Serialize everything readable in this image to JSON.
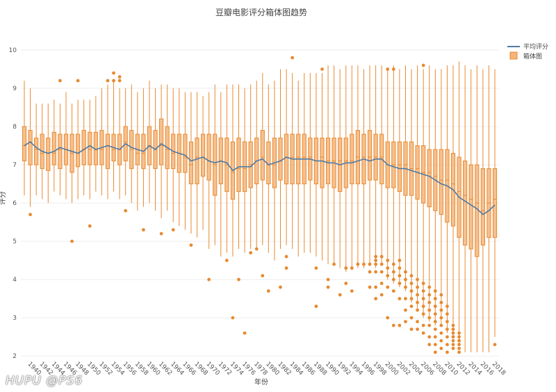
{
  "watermark": "HUPU @PS6",
  "chart_data": {
    "type": "box",
    "title": "豆瓣电影评分箱体图趋势",
    "xlabel": "年份",
    "ylabel": "评分",
    "ylim": [
      1.95,
      10.4
    ],
    "yticks": [
      2,
      3,
      4,
      5,
      6,
      7,
      8,
      9,
      10
    ],
    "xticks": [
      1940,
      1942,
      1944,
      1946,
      1948,
      1950,
      1952,
      1954,
      1956,
      1958,
      1960,
      1962,
      1964,
      1966,
      1968,
      1970,
      1972,
      1974,
      1976,
      1978,
      1980,
      1982,
      1984,
      1986,
      1988,
      1990,
      1992,
      1994,
      1996,
      1998,
      2000,
      2002,
      2004,
      2006,
      2008,
      2010,
      2012,
      2014,
      2016,
      2018
    ],
    "legend": {
      "position": "top-right",
      "entries": [
        "平均评分",
        "箱体图"
      ]
    },
    "colors": {
      "box": "#f5b57a",
      "box_edge": "#e8892f",
      "outlier": "#e8892f",
      "mean_line": "#4d7aa3",
      "grid": "#eeeeee"
    },
    "years": [
      1939,
      1940,
      1941,
      1942,
      1943,
      1944,
      1945,
      1946,
      1947,
      1948,
      1949,
      1950,
      1951,
      1952,
      1953,
      1954,
      1955,
      1956,
      1957,
      1958,
      1959,
      1960,
      1961,
      1962,
      1963,
      1964,
      1965,
      1966,
      1967,
      1968,
      1969,
      1970,
      1971,
      1972,
      1973,
      1974,
      1975,
      1976,
      1977,
      1978,
      1979,
      1980,
      1981,
      1982,
      1983,
      1984,
      1985,
      1986,
      1987,
      1988,
      1989,
      1990,
      1991,
      1992,
      1993,
      1994,
      1995,
      1996,
      1997,
      1998,
      1999,
      2000,
      2001,
      2002,
      2003,
      2004,
      2005,
      2006,
      2007,
      2008,
      2009,
      2010,
      2011,
      2012,
      2013,
      2014,
      2015,
      2016,
      2017,
      2018
    ],
    "mean": [
      7.5,
      7.6,
      7.45,
      7.35,
      7.3,
      7.35,
      7.45,
      7.4,
      7.35,
      7.3,
      7.4,
      7.5,
      7.4,
      7.45,
      7.5,
      7.45,
      7.4,
      7.55,
      7.45,
      7.4,
      7.35,
      7.5,
      7.4,
      7.55,
      7.45,
      7.35,
      7.3,
      7.25,
      7.1,
      7.15,
      7.2,
      7.1,
      7.05,
      7.1,
      7.05,
      6.85,
      6.95,
      6.95,
      6.95,
      7.1,
      7.15,
      7.0,
      7.05,
      7.1,
      7.2,
      7.15,
      7.15,
      7.15,
      7.15,
      7.1,
      7.1,
      7.05,
      7.05,
      7.0,
      7.05,
      7.05,
      7.1,
      7.15,
      7.1,
      7.15,
      7.15,
      7.0,
      6.95,
      6.9,
      6.9,
      6.85,
      6.8,
      6.75,
      6.7,
      6.6,
      6.5,
      6.45,
      6.35,
      6.15,
      6.05,
      5.95,
      5.85,
      5.7,
      5.8,
      5.95
    ],
    "q1": [
      7.1,
      7.0,
      7.0,
      6.9,
      6.85,
      7.0,
      6.9,
      7.0,
      6.8,
      6.95,
      7.0,
      7.0,
      7.0,
      7.0,
      6.9,
      7.1,
      7.0,
      7.1,
      6.9,
      7.0,
      6.9,
      7.0,
      6.9,
      7.0,
      6.9,
      6.9,
      6.8,
      6.8,
      6.5,
      6.5,
      6.7,
      6.6,
      6.2,
      6.5,
      6.3,
      6.1,
      6.3,
      6.3,
      6.4,
      6.5,
      6.6,
      6.5,
      6.4,
      6.6,
      6.5,
      6.5,
      6.5,
      6.5,
      6.6,
      6.5,
      6.4,
      6.5,
      6.4,
      6.3,
      6.4,
      6.5,
      6.5,
      6.5,
      6.6,
      6.6,
      6.5,
      6.4,
      6.4,
      6.3,
      6.2,
      6.2,
      6.1,
      6.0,
      5.9,
      5.8,
      5.7,
      5.5,
      5.4,
      5.1,
      4.9,
      4.8,
      4.6,
      4.9,
      5.1,
      5.1
    ],
    "median": [
      7.5,
      7.6,
      7.4,
      7.3,
      7.3,
      7.3,
      7.4,
      7.4,
      7.3,
      7.3,
      7.4,
      7.4,
      7.4,
      7.4,
      7.5,
      7.4,
      7.4,
      7.6,
      7.4,
      7.3,
      7.3,
      7.5,
      7.4,
      7.5,
      7.4,
      7.3,
      7.3,
      7.2,
      7.0,
      7.2,
      7.2,
      7.1,
      7.0,
      7.1,
      7.0,
      6.8,
      6.9,
      6.9,
      7.0,
      7.1,
      7.2,
      7.0,
      7.0,
      7.1,
      7.2,
      7.2,
      7.2,
      7.2,
      7.2,
      7.1,
      7.2,
      7.1,
      7.1,
      7.1,
      7.1,
      7.1,
      7.2,
      7.2,
      7.2,
      7.2,
      7.2,
      7.0,
      7.0,
      7.0,
      7.0,
      6.9,
      6.9,
      6.8,
      6.8,
      6.7,
      6.6,
      6.6,
      6.5,
      6.3,
      6.2,
      6.1,
      6.0,
      5.8,
      6.0,
      6.1
    ],
    "q3": [
      8.0,
      7.9,
      7.7,
      7.8,
      7.7,
      7.85,
      7.8,
      7.8,
      7.8,
      7.8,
      7.9,
      7.85,
      7.85,
      7.9,
      7.8,
      7.8,
      7.8,
      8.0,
      7.9,
      7.8,
      7.8,
      8.0,
      7.9,
      8.2,
      8.0,
      7.8,
      7.8,
      7.8,
      7.6,
      7.7,
      7.8,
      7.8,
      7.8,
      7.7,
      7.7,
      7.6,
      7.7,
      7.6,
      7.6,
      7.7,
      7.9,
      7.6,
      7.7,
      7.7,
      7.8,
      7.8,
      7.8,
      7.8,
      7.7,
      7.7,
      7.7,
      7.7,
      7.7,
      7.7,
      7.7,
      7.8,
      7.9,
      7.8,
      7.9,
      7.8,
      7.8,
      7.6,
      7.6,
      7.6,
      7.6,
      7.6,
      7.5,
      7.5,
      7.4,
      7.4,
      7.4,
      7.4,
      7.3,
      7.2,
      7.1,
      7.0,
      7.0,
      6.9,
      6.9,
      6.9
    ],
    "low": [
      6.2,
      5.9,
      6.2,
      6.1,
      6.0,
      6.3,
      6.2,
      6.1,
      6.0,
      6.1,
      6.2,
      6.1,
      6.3,
      6.2,
      6.1,
      6.3,
      6.1,
      6.2,
      6.0,
      5.8,
      5.9,
      6.0,
      5.8,
      5.6,
      5.8,
      5.5,
      5.4,
      5.3,
      5.2,
      5.1,
      5.3,
      4.8,
      4.9,
      4.6,
      4.7,
      4.6,
      4.8,
      4.7,
      4.8,
      4.8,
      4.9,
      4.7,
      4.5,
      4.8,
      4.9,
      4.8,
      4.6,
      4.7,
      4.7,
      4.6,
      4.5,
      4.4,
      4.4,
      4.3,
      4.2,
      4.3,
      4.3,
      4.3,
      4.4,
      4.3,
      4.4,
      4.0,
      3.9,
      3.8,
      3.7,
      3.4,
      3.2,
      3.0,
      2.9,
      2.8,
      2.8,
      2.6,
      2.5,
      2.3,
      2.1,
      2.1,
      2.1,
      2.1,
      2.1,
      2.5
    ],
    "high": [
      9.2,
      9.0,
      8.6,
      8.6,
      8.6,
      8.7,
      8.6,
      8.9,
      8.6,
      8.7,
      8.7,
      8.7,
      8.8,
      9.0,
      9.1,
      9.2,
      9.0,
      9.0,
      9.1,
      8.9,
      9.0,
      9.2,
      9.0,
      9.1,
      9.1,
      9.0,
      9.0,
      8.9,
      8.9,
      8.9,
      8.8,
      8.9,
      9.1,
      8.9,
      9.1,
      9.1,
      9.1,
      9.0,
      9.1,
      9.2,
      9.4,
      9.1,
      9.2,
      9.5,
      9.5,
      9.4,
      9.2,
      9.4,
      9.4,
      9.4,
      9.4,
      9.6,
      9.6,
      9.5,
      9.6,
      9.6,
      9.6,
      9.5,
      9.6,
      9.6,
      9.6,
      9.5,
      9.6,
      9.5,
      9.6,
      9.5,
      9.6,
      9.5,
      9.6,
      9.5,
      9.5,
      9.6,
      9.6,
      9.7,
      9.6,
      9.5,
      9.6,
      9.5,
      9.6,
      9.5
    ],
    "outliers": [
      {
        "year": 1940,
        "value": 5.7
      },
      {
        "year": 1945,
        "value": 9.2
      },
      {
        "year": 1948,
        "value": 9.2
      },
      {
        "year": 1947,
        "value": 5.0
      },
      {
        "year": 1950,
        "value": 5.4
      },
      {
        "year": 1953,
        "value": 9.2
      },
      {
        "year": 1954,
        "value": 9.4
      },
      {
        "year": 1954,
        "value": 9.2
      },
      {
        "year": 1955,
        "value": 9.3
      },
      {
        "year": 1955,
        "value": 9.2
      },
      {
        "year": 1956,
        "value": 5.8
      },
      {
        "year": 1959,
        "value": 5.3
      },
      {
        "year": 1962,
        "value": 5.2
      },
      {
        "year": 1964,
        "value": 5.3
      },
      {
        "year": 1967,
        "value": 4.9
      },
      {
        "year": 1970,
        "value": 4.0
      },
      {
        "year": 1973,
        "value": 4.5
      },
      {
        "year": 1974,
        "value": 3.0
      },
      {
        "year": 1975,
        "value": 4.0
      },
      {
        "year": 1976,
        "value": 2.6
      },
      {
        "year": 1977,
        "value": 4.7
      },
      {
        "year": 1978,
        "value": 4.8
      },
      {
        "year": 1979,
        "value": 4.1
      },
      {
        "year": 1980,
        "value": 3.7
      },
      {
        "year": 1982,
        "value": 3.8
      },
      {
        "year": 1983,
        "value": 4.6
      },
      {
        "year": 1983,
        "value": 4.3
      },
      {
        "year": 1984,
        "value": 9.8
      },
      {
        "year": 1988,
        "value": 4.3
      },
      {
        "year": 1988,
        "value": 3.3
      },
      {
        "year": 1989,
        "value": 9.5
      },
      {
        "year": 1990,
        "value": 4.0
      },
      {
        "year": 1990,
        "value": 3.8
      },
      {
        "year": 1991,
        "value": 4.4
      },
      {
        "year": 1992,
        "value": 3.6
      },
      {
        "year": 1993,
        "value": 4.3
      },
      {
        "year": 1993,
        "value": 3.9
      },
      {
        "year": 1994,
        "value": 4.3
      },
      {
        "year": 1994,
        "value": 3.7
      },
      {
        "year": 1995,
        "value": 4.4
      },
      {
        "year": 1996,
        "value": 4.4
      },
      {
        "year": 1997,
        "value": 4.4
      },
      {
        "year": 1997,
        "value": 4.2
      },
      {
        "year": 1997,
        "value": 3.8
      },
      {
        "year": 1998,
        "value": 4.6
      },
      {
        "year": 1998,
        "value": 4.5
      },
      {
        "year": 1998,
        "value": 4.4
      },
      {
        "year": 1998,
        "value": 4.2
      },
      {
        "year": 1998,
        "value": 3.8
      },
      {
        "year": 1998,
        "value": 3.5
      },
      {
        "year": 1999,
        "value": 4.6
      },
      {
        "year": 1999,
        "value": 4.4
      },
      {
        "year": 1999,
        "value": 4.2
      },
      {
        "year": 1999,
        "value": 3.9
      },
      {
        "year": 1999,
        "value": 3.6
      },
      {
        "year": 2000,
        "value": 9.5
      },
      {
        "year": 2000,
        "value": 4.5
      },
      {
        "year": 2000,
        "value": 4.3
      },
      {
        "year": 2000,
        "value": 4.1
      },
      {
        "year": 2000,
        "value": 3.8
      },
      {
        "year": 2000,
        "value": 3.0
      },
      {
        "year": 2001,
        "value": 9.5
      },
      {
        "year": 2001,
        "value": 4.4
      },
      {
        "year": 2001,
        "value": 4.2
      },
      {
        "year": 2001,
        "value": 4.0
      },
      {
        "year": 2001,
        "value": 3.7
      },
      {
        "year": 2001,
        "value": 2.8
      },
      {
        "year": 2002,
        "value": 4.5
      },
      {
        "year": 2002,
        "value": 4.3
      },
      {
        "year": 2002,
        "value": 4.1
      },
      {
        "year": 2002,
        "value": 3.9
      },
      {
        "year": 2002,
        "value": 3.5
      },
      {
        "year": 2002,
        "value": 2.8
      },
      {
        "year": 2003,
        "value": 4.2
      },
      {
        "year": 2003,
        "value": 4.0
      },
      {
        "year": 2003,
        "value": 3.8
      },
      {
        "year": 2003,
        "value": 3.5
      },
      {
        "year": 2003,
        "value": 3.2
      },
      {
        "year": 2003,
        "value": 2.9
      },
      {
        "year": 2004,
        "value": 4.1
      },
      {
        "year": 2004,
        "value": 3.9
      },
      {
        "year": 2004,
        "value": 3.7
      },
      {
        "year": 2004,
        "value": 3.5
      },
      {
        "year": 2004,
        "value": 3.3
      },
      {
        "year": 2004,
        "value": 3.0
      },
      {
        "year": 2004,
        "value": 2.7
      },
      {
        "year": 2005,
        "value": 4.0
      },
      {
        "year": 2005,
        "value": 3.8
      },
      {
        "year": 2005,
        "value": 3.6
      },
      {
        "year": 2005,
        "value": 3.4
      },
      {
        "year": 2005,
        "value": 3.2
      },
      {
        "year": 2005,
        "value": 2.9
      },
      {
        "year": 2005,
        "value": 2.7
      },
      {
        "year": 2006,
        "value": 9.6
      },
      {
        "year": 2006,
        "value": 3.9
      },
      {
        "year": 2006,
        "value": 3.7
      },
      {
        "year": 2006,
        "value": 3.5
      },
      {
        "year": 2006,
        "value": 3.3
      },
      {
        "year": 2006,
        "value": 3.1
      },
      {
        "year": 2006,
        "value": 2.8
      },
      {
        "year": 2006,
        "value": 2.6
      },
      {
        "year": 2007,
        "value": 3.8
      },
      {
        "year": 2007,
        "value": 3.6
      },
      {
        "year": 2007,
        "value": 3.4
      },
      {
        "year": 2007,
        "value": 3.2
      },
      {
        "year": 2007,
        "value": 3.0
      },
      {
        "year": 2007,
        "value": 2.8
      },
      {
        "year": 2007,
        "value": 2.5
      },
      {
        "year": 2007,
        "value": 2.3
      },
      {
        "year": 2008,
        "value": 3.7
      },
      {
        "year": 2008,
        "value": 3.5
      },
      {
        "year": 2008,
        "value": 3.3
      },
      {
        "year": 2008,
        "value": 3.1
      },
      {
        "year": 2008,
        "value": 2.9
      },
      {
        "year": 2008,
        "value": 2.7
      },
      {
        "year": 2008,
        "value": 2.5
      },
      {
        "year": 2008,
        "value": 2.3
      },
      {
        "year": 2008,
        "value": 2.1
      },
      {
        "year": 2009,
        "value": 3.6
      },
      {
        "year": 2009,
        "value": 3.4
      },
      {
        "year": 2009,
        "value": 3.2
      },
      {
        "year": 2009,
        "value": 3.0
      },
      {
        "year": 2009,
        "value": 2.8
      },
      {
        "year": 2009,
        "value": 2.6
      },
      {
        "year": 2009,
        "value": 2.4
      },
      {
        "year": 2009,
        "value": 2.2
      },
      {
        "year": 2010,
        "value": 3.3
      },
      {
        "year": 2010,
        "value": 3.1
      },
      {
        "year": 2010,
        "value": 2.9
      },
      {
        "year": 2010,
        "value": 2.7
      },
      {
        "year": 2010,
        "value": 2.5
      },
      {
        "year": 2010,
        "value": 2.3
      },
      {
        "year": 2010,
        "value": 2.1
      },
      {
        "year": 2011,
        "value": 2.8
      },
      {
        "year": 2011,
        "value": 2.7
      },
      {
        "year": 2011,
        "value": 2.6
      },
      {
        "year": 2011,
        "value": 2.5
      },
      {
        "year": 2011,
        "value": 2.4
      },
      {
        "year": 2011,
        "value": 2.3
      },
      {
        "year": 2011,
        "value": 2.2
      },
      {
        "year": 2012,
        "value": 2.6
      },
      {
        "year": 2012,
        "value": 2.5
      },
      {
        "year": 2012,
        "value": 2.4
      },
      {
        "year": 2012,
        "value": 2.3
      },
      {
        "year": 2012,
        "value": 2.2
      },
      {
        "year": 2012,
        "value": 2.1
      },
      {
        "year": 2018,
        "value": 2.3
      }
    ]
  }
}
